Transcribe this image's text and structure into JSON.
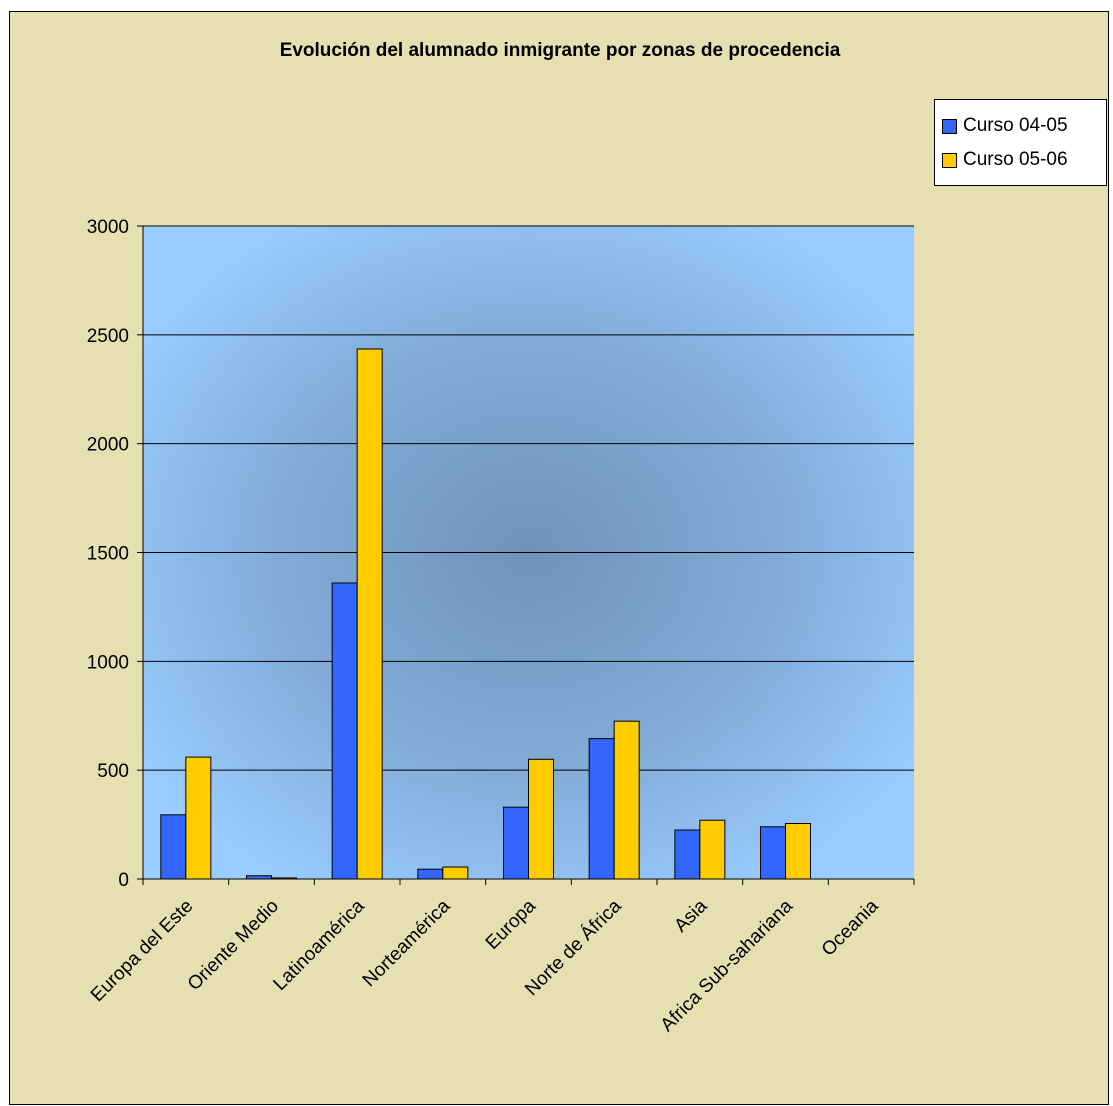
{
  "chart_data": {
    "type": "bar",
    "title": "Evolución del alumnado inmigrante por zonas de procedencia",
    "xlabel": "",
    "ylabel": "",
    "categories": [
      "Europa del Este",
      "Oriente Medio",
      "Latinoamérica",
      "Norteamérica",
      "Europa",
      "Norte de África",
      "Asia",
      "Africa Sub-sahariana",
      "Oceania"
    ],
    "series": [
      {
        "name": "Curso 04-05",
        "color": "#3366ff",
        "values": [
          295,
          15,
          1360,
          45,
          330,
          645,
          225,
          240,
          0
        ]
      },
      {
        "name": "Curso 05-06",
        "color": "#ffcc00",
        "values": [
          560,
          5,
          2435,
          55,
          550,
          725,
          270,
          255,
          0
        ]
      }
    ],
    "ylim": [
      0,
      3000
    ],
    "yticks": [
      0,
      500,
      1000,
      1500,
      2000,
      2500,
      3000
    ],
    "grid": true,
    "legend_position": "top-right",
    "plot_background": "#99ccff",
    "chart_background": "#e6dfb2"
  }
}
